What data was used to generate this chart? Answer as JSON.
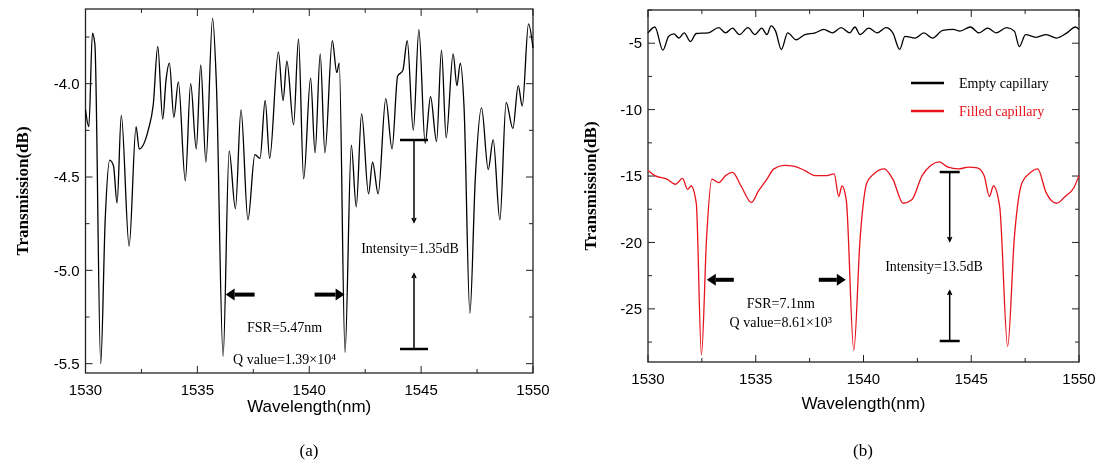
{
  "chart_data": [
    {
      "type": "line",
      "xlabel": "Wavelength(nm)",
      "ylabel": "Transmission(dB)",
      "xlim": [
        1530,
        1550
      ],
      "ylim": [
        -5.55,
        -3.6
      ],
      "xticks": [
        1530,
        {
          "value": 1532.5,
          "label": null
        },
        1535,
        {
          "value": 1537.5,
          "label": null
        },
        1540,
        {
          "value": 1542.5,
          "label": null
        },
        1545,
        {
          "value": 1547.5,
          "label": null
        },
        1550
      ],
      "yticks": [
        {
          "value": -5.5,
          "label": "-5.5"
        },
        {
          "value": -5.25,
          "label": null
        },
        {
          "value": -5,
          "label": "-5.0"
        },
        {
          "value": -4.75,
          "label": null
        },
        {
          "value": -4.5,
          "label": "-4.5"
        },
        {
          "value": -4.25,
          "label": null
        },
        {
          "value": -4,
          "label": "-4.0"
        },
        {
          "value": -3.75,
          "label": null
        }
      ],
      "line_style": "solid",
      "marker": "none",
      "grid": false,
      "legend": false,
      "series": [
        {
          "color": "#000000",
          "x": [
            1530,
            1530.15,
            1530.31,
            1530.42,
            1530.68,
            1530.88,
            1531.08,
            1531.25,
            1531.41,
            1531.6,
            1531.95,
            1532.26,
            1532.4,
            1532.8,
            1533.03,
            1533.23,
            1533.45,
            1533.6,
            1533.75,
            1533.95,
            1534.15,
            1534.46,
            1534.7,
            1534.95,
            1535.15,
            1535.38,
            1535.68,
            1535.85,
            1536.15,
            1536.42,
            1536.7,
            1536.95,
            1537.26,
            1537.57,
            1537.8,
            1538.03,
            1538.23,
            1538.62,
            1538.83,
            1539.0,
            1539.3,
            1539.52,
            1539.75,
            1540.06,
            1540.26,
            1540.49,
            1540.7,
            1541.03,
            1541.23,
            1541.34,
            1541.6,
            1541.88,
            1542.1,
            1542.34,
            1542.65,
            1542.83,
            1543.08,
            1543.42,
            1543.7,
            1543.95,
            1544.18,
            1544.38,
            1544.65,
            1544.9,
            1545.18,
            1545.42,
            1545.69,
            1545.91,
            1546.12,
            1546.43,
            1546.6,
            1546.75,
            1546.92,
            1547.18,
            1547.42,
            1547.7,
            1548.0,
            1548.22,
            1548.52,
            1548.8,
            1549.1,
            1549.34,
            1549.52,
            1549.8,
            1550
          ],
          "values": [
            -4.14,
            -4.23,
            -3.73,
            -3.79,
            -5.5,
            -4.73,
            -4.41,
            -4.44,
            -4.64,
            -4.17,
            -4.87,
            -4.23,
            -4.35,
            -4.25,
            -4.11,
            -3.8,
            -4.19,
            -3.98,
            -3.89,
            -4.18,
            -3.99,
            -4.52,
            -4.0,
            -4.35,
            -3.9,
            -4.42,
            -3.65,
            -4.0,
            -5.46,
            -4.36,
            -4.67,
            -4.14,
            -4.73,
            -4.38,
            -4.4,
            -4.09,
            -4.4,
            -3.83,
            -4.09,
            -3.88,
            -4.22,
            -3.76,
            -4.51,
            -3.97,
            -4.37,
            -3.84,
            -4.37,
            -3.77,
            -3.94,
            -3.89,
            -5.44,
            -4.33,
            -4.66,
            -4.16,
            -4.59,
            -4.42,
            -4.59,
            -4.08,
            -4.35,
            -3.96,
            -3.93,
            -3.77,
            -4.25,
            -3.71,
            -4.32,
            -4.07,
            -4.31,
            -3.82,
            -4.29,
            -3.84,
            -4.01,
            -3.89,
            -4.13,
            -5.23,
            -4.51,
            -4.13,
            -4.46,
            -4.3,
            -4.73,
            -4.1,
            -4.24,
            -4.01,
            -4.12,
            -3.68,
            -3.81
          ]
        }
      ],
      "annotations": [
        "FSR=5.47nm",
        "Q value=1.39×10⁴",
        "Intensity=1.35dB",
        "(a)"
      ]
    },
    {
      "type": "line",
      "xlabel": "Wavelength(nm)",
      "ylabel": "Transmission(dB)",
      "xlim": [
        1530,
        1550
      ],
      "ylim": [
        -29,
        -2.5
      ],
      "xticks": [
        1530,
        {
          "value": 1532.5,
          "label": null
        },
        1535,
        {
          "value": 1537.5,
          "label": null
        },
        1540,
        {
          "value": 1542.5,
          "label": null
        },
        1545,
        {
          "value": 1547.5,
          "label": null
        },
        1550
      ],
      "yticks": [
        {
          "value": -27.5,
          "label": null
        },
        -25,
        {
          "value": -22.5,
          "label": null
        },
        -20,
        {
          "value": -17.5,
          "label": null
        },
        -15,
        {
          "value": -12.5,
          "label": null
        },
        -10,
        {
          "value": -7.5,
          "label": null
        },
        -5,
        {
          "value": -2.5,
          "label": null
        }
      ],
      "line_style": "solid",
      "marker": "none",
      "grid": false,
      "legend": "top right",
      "series": [
        {
          "name": "Empty capillary",
          "color": "#000000",
          "x": [
            1530,
            1530.32,
            1530.69,
            1530.96,
            1531.2,
            1531.44,
            1531.68,
            1531.97,
            1532.24,
            1532.8,
            1533.28,
            1533.6,
            1533.92,
            1534.24,
            1534.64,
            1534.96,
            1535.28,
            1535.52,
            1535.71,
            1535.92,
            1536.19,
            1536.48,
            1536.88,
            1537.28,
            1537.76,
            1538.16,
            1538.56,
            1538.96,
            1539.36,
            1539.6,
            1539.84,
            1540.24,
            1540.64,
            1541.04,
            1541.36,
            1541.68,
            1541.92,
            1542.4,
            1542.8,
            1543.2,
            1543.68,
            1544.16,
            1544.48,
            1544.96,
            1545.36,
            1545.76,
            1546.16,
            1546.64,
            1547.0,
            1547.23,
            1547.52,
            1548.0,
            1548.48,
            1548.96,
            1549.44,
            1549.84,
            1550
          ],
          "values": [
            -4.22,
            -3.78,
            -5.52,
            -4.48,
            -4.3,
            -4.61,
            -4.22,
            -4.87,
            -4.27,
            -4.22,
            -3.83,
            -4.22,
            -3.87,
            -4.35,
            -3.83,
            -4.35,
            -3.87,
            -4.35,
            -3.7,
            -4.09,
            -5.47,
            -4.22,
            -4.74,
            -4.35,
            -4.22,
            -3.96,
            -4.22,
            -3.83,
            -4.22,
            -3.78,
            -4.35,
            -3.87,
            -4.22,
            -3.83,
            -4.22,
            -5.47,
            -4.48,
            -4.61,
            -4.22,
            -4.61,
            -4.04,
            -3.96,
            -4.09,
            -3.78,
            -4.22,
            -3.87,
            -4.22,
            -3.83,
            -4.09,
            -5.26,
            -4.35,
            -4.56,
            -4.35,
            -4.61,
            -4.22,
            -3.78,
            -3.96
          ]
        },
        {
          "name": "Filled capillary",
          "color": "#e8141c",
          "x": [
            1530,
            1530.32,
            1530.88,
            1531.28,
            1531.6,
            1531.84,
            1532.0,
            1532.24,
            1532.48,
            1532.72,
            1532.96,
            1533.28,
            1533.6,
            1533.92,
            1534.32,
            1534.8,
            1535.12,
            1535.52,
            1535.84,
            1536.32,
            1536.8,
            1537.28,
            1537.76,
            1538.24,
            1538.64,
            1538.85,
            1539.0,
            1539.2,
            1539.55,
            1539.84,
            1540.16,
            1540.48,
            1540.96,
            1541.36,
            1541.84,
            1542.24,
            1542.72,
            1543.12,
            1543.52,
            1543.92,
            1544.4,
            1544.88,
            1545.28,
            1545.6,
            1545.84,
            1546.03,
            1546.32,
            1546.69,
            1547.0,
            1547.36,
            1547.76,
            1548.08,
            1548.48,
            1548.96,
            1549.36,
            1549.76,
            1550
          ],
          "values": [
            -14.59,
            -14.97,
            -15.23,
            -15.62,
            -15.18,
            -16.0,
            -15.75,
            -17.05,
            -28.47,
            -19.59,
            -15.23,
            -15.49,
            -14.97,
            -14.72,
            -15.75,
            -16.99,
            -16.14,
            -15.23,
            -14.46,
            -14.2,
            -14.27,
            -14.59,
            -14.97,
            -14.97,
            -14.84,
            -16.54,
            -15.75,
            -16.79,
            -28.13,
            -19.77,
            -15.49,
            -14.84,
            -14.46,
            -15.23,
            -17.05,
            -16.79,
            -14.97,
            -14.2,
            -13.94,
            -14.33,
            -14.46,
            -14.33,
            -14.38,
            -14.97,
            -16.54,
            -15.75,
            -17.31,
            -27.82,
            -19.64,
            -15.49,
            -14.72,
            -14.46,
            -16.27,
            -17.05,
            -16.54,
            -15.88,
            -14.97
          ]
        }
      ],
      "annotations": [
        "FSR=7.1nm",
        "Q value=8.61×10³",
        {
          "text": "Intensity=13.5dB",
          "x": 1544,
          "y": -14.7
        },
        "(b)"
      ]
    }
  ]
}
